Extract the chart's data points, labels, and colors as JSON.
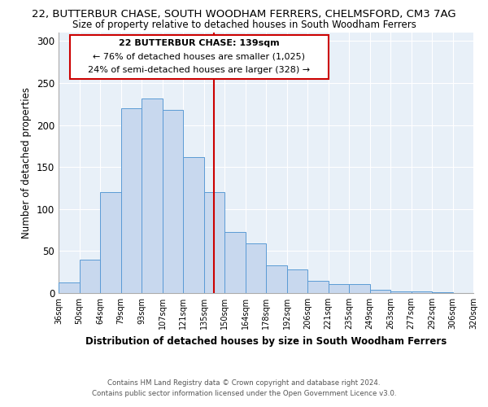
{
  "title1": "22, BUTTERBUR CHASE, SOUTH WOODHAM FERRERS, CHELMSFORD, CM3 7AG",
  "title2": "Size of property relative to detached houses in South Woodham Ferrers",
  "xlabel": "Distribution of detached houses by size in South Woodham Ferrers",
  "ylabel": "Number of detached properties",
  "footer1": "Contains HM Land Registry data © Crown copyright and database right 2024.",
  "footer2": "Contains public sector information licensed under the Open Government Licence v3.0.",
  "bin_labels": [
    "36sqm",
    "50sqm",
    "64sqm",
    "79sqm",
    "93sqm",
    "107sqm",
    "121sqm",
    "135sqm",
    "150sqm",
    "164sqm",
    "178sqm",
    "192sqm",
    "206sqm",
    "221sqm",
    "235sqm",
    "249sqm",
    "263sqm",
    "277sqm",
    "292sqm",
    "306sqm",
    "320sqm"
  ],
  "bar_values": [
    13,
    40,
    120,
    220,
    232,
    218,
    162,
    120,
    73,
    59,
    33,
    28,
    15,
    11,
    11,
    4,
    2,
    2,
    1,
    0
  ],
  "bar_color": "#c8d8ee",
  "bar_edge_color": "#5b9bd5",
  "vline_color": "#cc0000",
  "annotation_title": "22 BUTTERBUR CHASE: 139sqm",
  "annotation_line1": "← 76% of detached houses are smaller (1,025)",
  "annotation_line2": "24% of semi-detached houses are larger (328) →",
  "annotation_box_color": "#ffffff",
  "annotation_box_edge": "#cc0000",
  "plot_bg_color": "#e8f0f8",
  "grid_color": "#ffffff",
  "ylim": [
    0,
    310
  ],
  "yticks": [
    0,
    50,
    100,
    150,
    200,
    250,
    300
  ]
}
